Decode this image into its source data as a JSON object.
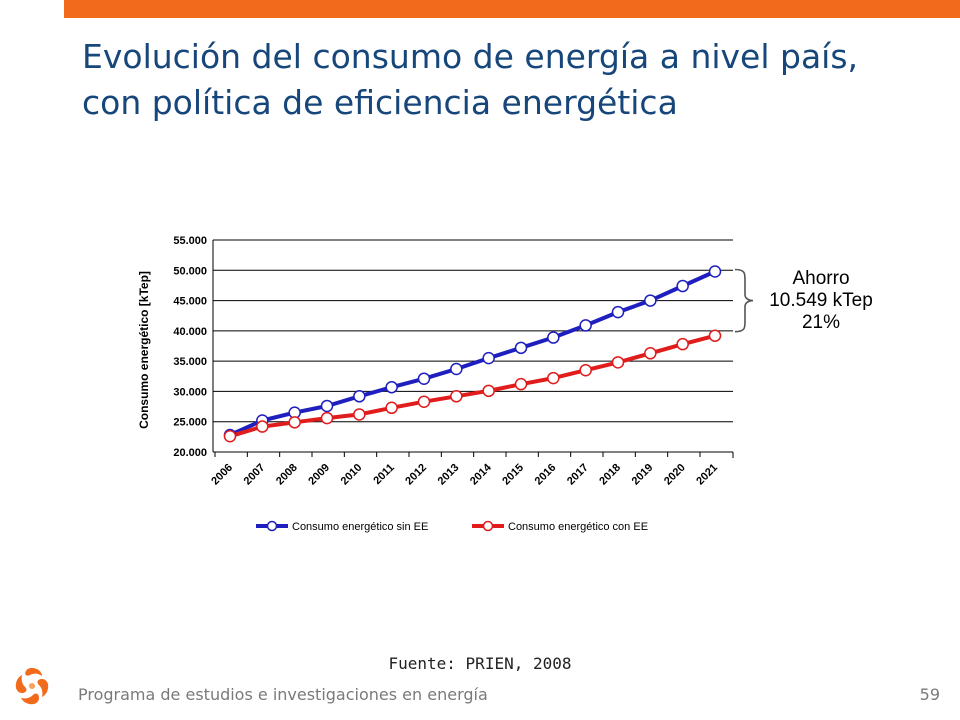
{
  "slide": {
    "title": "Evolución del consumo de energía a nivel país, con política de eficiencia energética",
    "source": "Fuente: PRIEN, 2008",
    "footer": "Programa de estudios e investigaciones en energía",
    "page_number": "59"
  },
  "colors": {
    "accent": "#f26a1b",
    "title": "#16467a",
    "series_sin": "#1f1fbf",
    "series_con": "#e01c1c"
  },
  "chart_data": {
    "type": "line",
    "title": "",
    "xlabel": "",
    "ylabel": "Consumo energético [kTep]",
    "ylim": [
      20000,
      55000
    ],
    "yticks": [
      55000,
      50000,
      45000,
      40000,
      35000,
      30000,
      25000,
      20000
    ],
    "ytick_labels": [
      "55.000",
      "50.000",
      "45.000",
      "40.000",
      "35.000",
      "30.000",
      "25.000",
      "20.000"
    ],
    "categories": [
      "2006",
      "2007",
      "2008",
      "2009",
      "2010",
      "2011",
      "2012",
      "2013",
      "2014",
      "2015",
      "2016",
      "2017",
      "2018",
      "2019",
      "2020",
      "2021"
    ],
    "series": [
      {
        "name": "Consumo energético sin EE",
        "color": "#1f1fbf",
        "values": [
          22800,
          25200,
          26500,
          27600,
          29200,
          30700,
          32100,
          33700,
          35500,
          37200,
          38900,
          40900,
          43100,
          45000,
          47400,
          49800
        ]
      },
      {
        "name": "Consumo energético con EE",
        "color": "#e01c1c",
        "values": [
          22600,
          24200,
          24900,
          25600,
          26200,
          27300,
          28300,
          29200,
          30100,
          31200,
          32200,
          33500,
          34800,
          36300,
          37800,
          39200
        ]
      }
    ],
    "grid": true,
    "legend": "bottom",
    "annotation": {
      "line1": "Ahorro",
      "line2": "10.549 kTep",
      "line3": "21%"
    }
  }
}
